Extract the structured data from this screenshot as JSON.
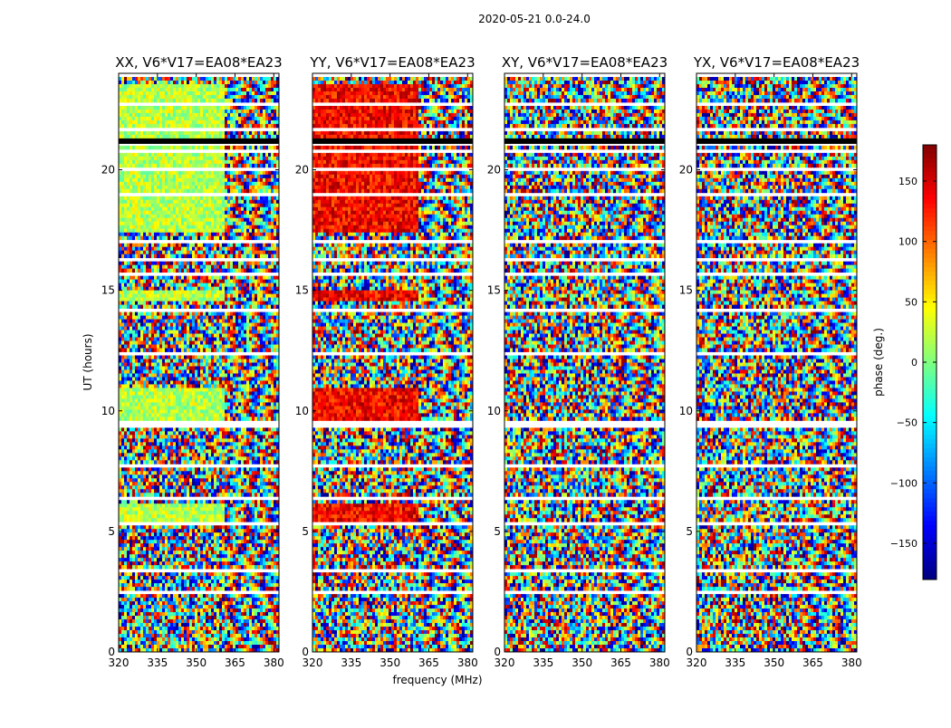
{
  "figure": {
    "suptitle": "2020-05-21 0.0-24.0",
    "xlabel": "frequency (MHz)",
    "ylabel": "UT (hours)",
    "colorbar_label": "phase (deg.)",
    "colorbar_ticks": [
      -150,
      -100,
      -50,
      0,
      50,
      100,
      150
    ],
    "colorbar_range": [
      -180,
      180
    ],
    "colormap": "jet"
  },
  "chart_data": [
    {
      "type": "heatmap",
      "title": "XX, V6*V17=EA08*EA23",
      "x_range": [
        320,
        382
      ],
      "y_range": [
        0,
        24
      ],
      "xticks": [
        320,
        335,
        350,
        365,
        380
      ],
      "yticks": [
        0,
        5,
        10,
        15,
        20
      ],
      "xlabel": "",
      "ylabel": "UT (hours)",
      "coherent_phase_deg": 20,
      "coherent_freq_end": 361
    },
    {
      "type": "heatmap",
      "title": "YY, V6*V17=EA08*EA23",
      "x_range": [
        320,
        382
      ],
      "y_range": [
        0,
        24
      ],
      "xticks": [
        320,
        335,
        350,
        365,
        380
      ],
      "yticks": [
        0,
        5,
        10,
        15,
        20
      ],
      "xlabel": "frequency (MHz)",
      "ylabel": "",
      "coherent_phase_deg": 135,
      "coherent_freq_end": 361
    },
    {
      "type": "heatmap",
      "title": "XY, V6*V17=EA08*EA23",
      "x_range": [
        320,
        382
      ],
      "y_range": [
        0,
        24
      ],
      "xticks": [
        320,
        335,
        350,
        365,
        380
      ],
      "yticks": [
        0,
        5,
        10,
        15,
        20
      ],
      "xlabel": "",
      "ylabel": "",
      "coherent_phase_deg": null,
      "coherent_freq_end": null
    },
    {
      "type": "heatmap",
      "title": "YX, V6*V17=EA08*EA23",
      "x_range": [
        320,
        382
      ],
      "y_range": [
        0,
        24
      ],
      "xticks": [
        320,
        335,
        350,
        365,
        380
      ],
      "yticks": [
        0,
        5,
        10,
        15,
        20
      ],
      "xlabel": "",
      "ylabel": "",
      "coherent_phase_deg": null,
      "coherent_freq_end": null
    }
  ],
  "data_gaps_ut_hours": [
    [
      23.85,
      24.0
    ],
    [
      23.55,
      23.6
    ],
    [
      23.2,
      23.3
    ],
    [
      22.7,
      22.75
    ],
    [
      21.05,
      21.15
    ],
    [
      20.7,
      20.85
    ],
    [
      20.1,
      19.9
    ],
    [
      19.05,
      18.95
    ],
    [
      17.3,
      17.2
    ],
    [
      16.35,
      16.25
    ],
    [
      14.3,
      14.15
    ],
    [
      13.7,
      13.6
    ],
    [
      12.45,
      12.35
    ],
    [
      11.15,
      11.05
    ],
    [
      9.6,
      9.3
    ],
    [
      8.75,
      8.65
    ],
    [
      7.75,
      7.6
    ],
    [
      6.4,
      6.3
    ],
    [
      5.35,
      5.25
    ],
    [
      4.4,
      4.3
    ],
    [
      3.4,
      3.3
    ],
    [
      2.55,
      2.4
    ],
    [
      1.85,
      1.75
    ],
    [
      1.55,
      1.45
    ],
    [
      17.05,
      16.95
    ],
    [
      21.6,
      21.7
    ],
    [
      15.7,
      15.65
    ],
    [
      10.4,
      10.35
    ]
  ]
}
